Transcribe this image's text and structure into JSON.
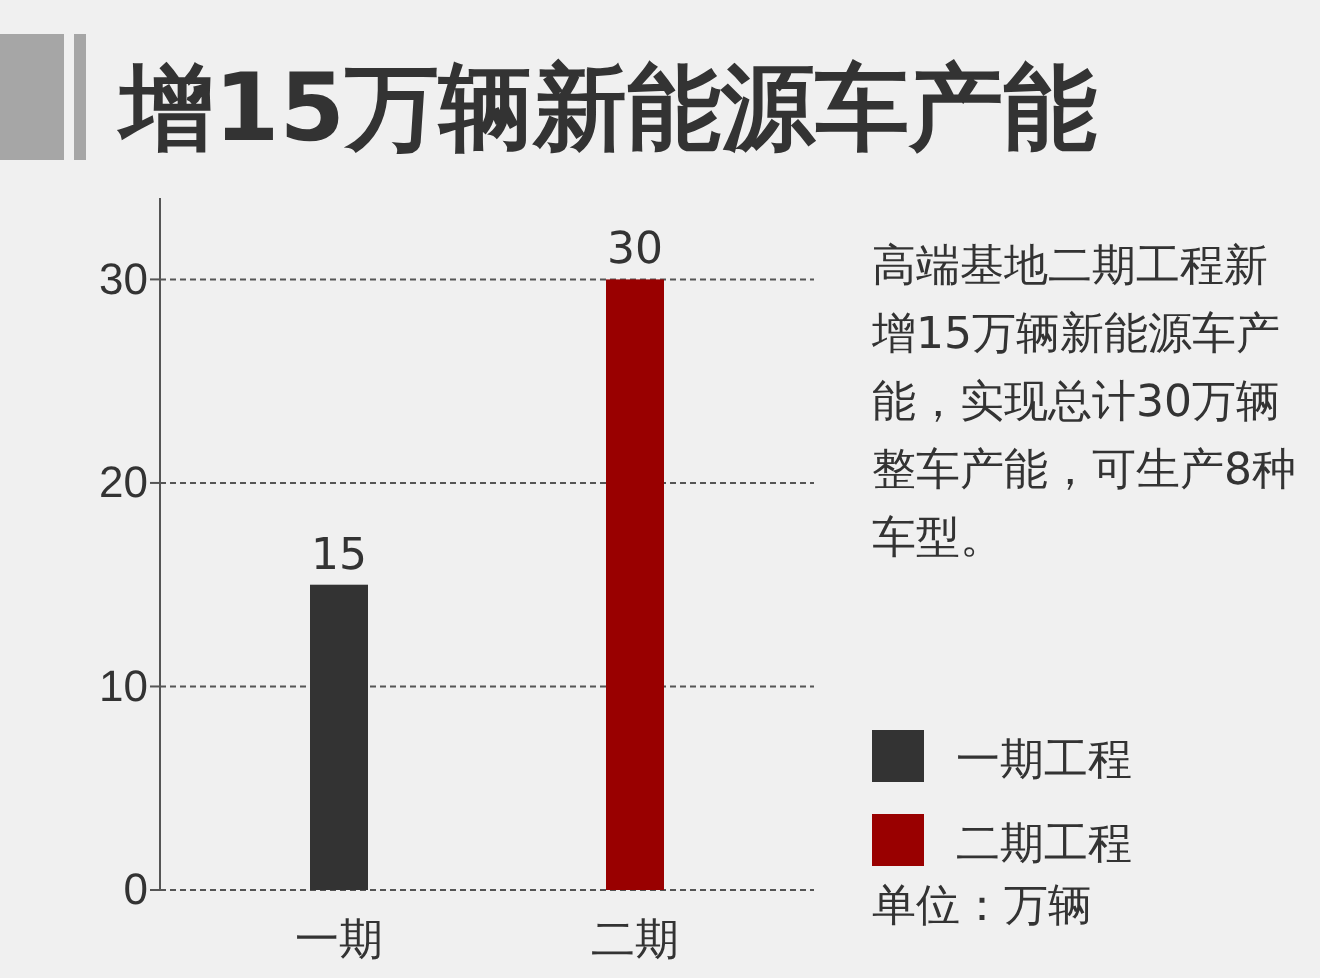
{
  "chart_data": {
    "type": "bar",
    "title": "增15万辆新能源车产能",
    "categories": [
      "一期",
      "二期"
    ],
    "series": [
      {
        "name": "一期工程",
        "color": "#333333",
        "values": [
          15,
          null
        ]
      },
      {
        "name": "二期工程",
        "color": "#990000",
        "values": [
          null,
          30
        ]
      }
    ],
    "ylim": [
      0,
      34
    ],
    "yticks": [
      0,
      10,
      20,
      30
    ],
    "grid": "y",
    "legend": "right",
    "data_labels": true,
    "annotations": [
      "高端基地二期工程新增15万辆新能源车产能，实现总计30万辆整车产能，可生产8种车型。",
      "单位：万辆"
    ]
  }
}
